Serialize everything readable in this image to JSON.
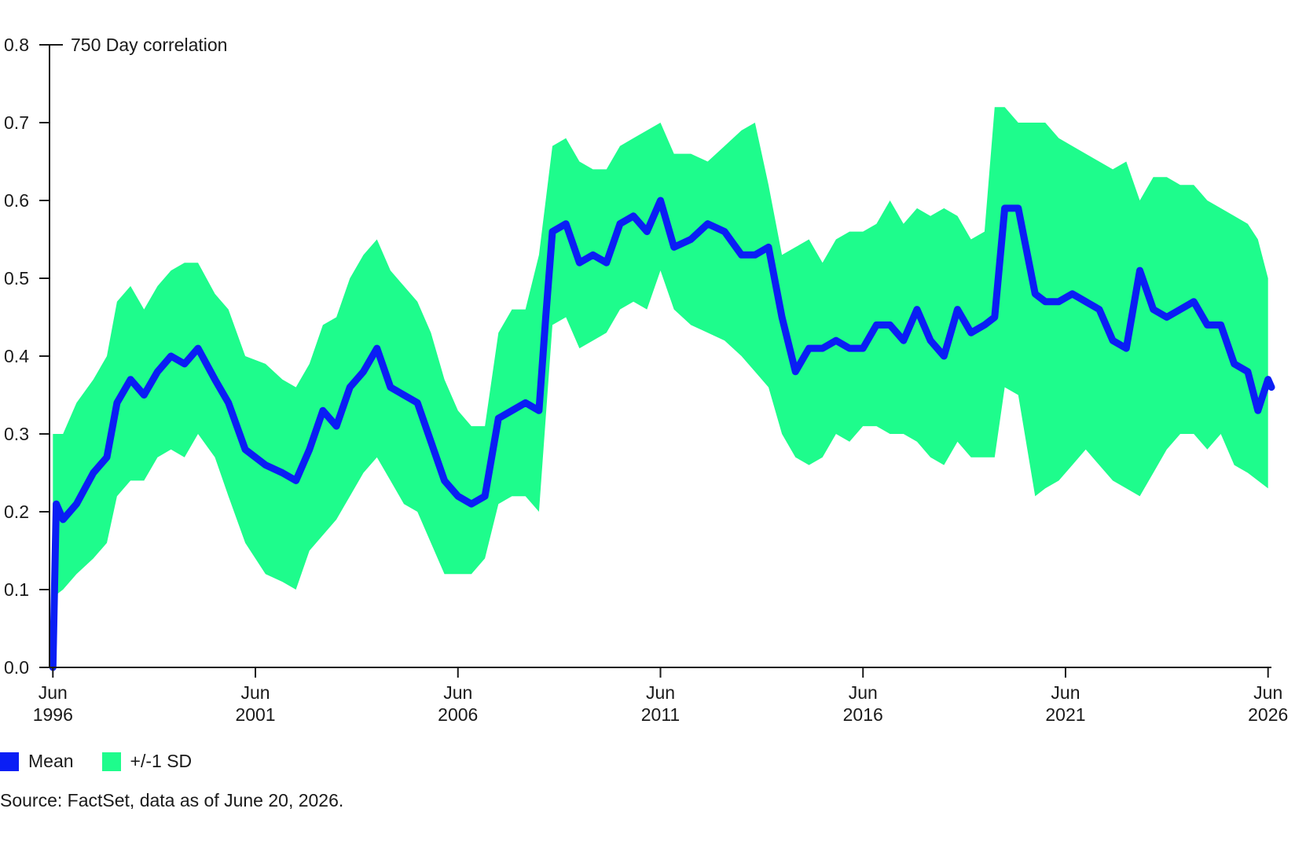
{
  "chart_data": {
    "type": "area",
    "title": "",
    "ylabel": "750 Day correlation",
    "xlabel": "",
    "ylim": [
      0.0,
      0.8
    ],
    "xlim": [
      "1996-05",
      "2026-07"
    ],
    "y_ticks": [
      "0.0",
      "0.1",
      "0.2",
      "0.3",
      "0.4",
      "0.5",
      "0.6",
      "0.7",
      "0.8"
    ],
    "x_ticks": [
      {
        "date": "1996-06",
        "line1": "Jun",
        "line2": "1996"
      },
      {
        "date": "2001-06",
        "line1": "Jun",
        "line2": "2001"
      },
      {
        "date": "2006-06",
        "line1": "Jun",
        "line2": "2006"
      },
      {
        "date": "2011-06",
        "line1": "Jun",
        "line2": "2011"
      },
      {
        "date": "2016-06",
        "line1": "Jun",
        "line2": "2016"
      },
      {
        "date": "2021-06",
        "line1": "Jun",
        "line2": "2021"
      },
      {
        "date": "2026-06",
        "line1": "Jun",
        "line2": "2026"
      }
    ],
    "grid": false,
    "legend": "bottom-left",
    "series": [
      {
        "name": "Mean",
        "color": "#0a1ef5",
        "x": [
          "1996-06",
          "1996-07",
          "1996-09",
          "1997-01",
          "1997-06",
          "1997-10",
          "1998-01",
          "1998-05",
          "1998-09",
          "1999-01",
          "1999-05",
          "1999-09",
          "2000-01",
          "2000-06",
          "2000-10",
          "2001-03",
          "2001-09",
          "2002-02",
          "2002-06",
          "2002-10",
          "2003-02",
          "2003-06",
          "2003-10",
          "2004-02",
          "2004-06",
          "2004-10",
          "2005-02",
          "2005-06",
          "2005-10",
          "2006-02",
          "2006-06",
          "2006-10",
          "2007-02",
          "2007-06",
          "2007-10",
          "2008-02",
          "2008-06",
          "2008-08",
          "2008-10",
          "2009-02",
          "2009-06",
          "2009-10",
          "2010-02",
          "2010-06",
          "2010-10",
          "2011-02",
          "2011-06",
          "2011-10",
          "2012-03",
          "2012-08",
          "2013-01",
          "2013-06",
          "2013-10",
          "2014-02",
          "2014-06",
          "2014-10",
          "2015-02",
          "2015-06",
          "2015-10",
          "2016-02",
          "2016-06",
          "2016-10",
          "2017-02",
          "2017-06",
          "2017-10",
          "2018-02",
          "2018-06",
          "2018-10",
          "2019-02",
          "2019-06",
          "2019-09",
          "2019-12",
          "2020-04",
          "2020-09",
          "2020-12",
          "2021-04",
          "2021-08",
          "2021-12",
          "2022-04",
          "2022-08",
          "2022-12",
          "2023-04",
          "2023-08",
          "2023-12",
          "2024-04",
          "2024-08",
          "2024-12",
          "2025-04",
          "2025-08",
          "2025-12",
          "2026-03",
          "2026-06",
          "2026-07"
        ],
        "values": [
          0.0,
          0.21,
          0.19,
          0.21,
          0.25,
          0.27,
          0.34,
          0.37,
          0.35,
          0.38,
          0.4,
          0.39,
          0.41,
          0.37,
          0.34,
          0.28,
          0.26,
          0.25,
          0.24,
          0.28,
          0.33,
          0.31,
          0.36,
          0.38,
          0.41,
          0.36,
          0.35,
          0.34,
          0.29,
          0.24,
          0.22,
          0.21,
          0.22,
          0.32,
          0.33,
          0.34,
          0.33,
          0.45,
          0.56,
          0.57,
          0.52,
          0.53,
          0.52,
          0.57,
          0.58,
          0.56,
          0.6,
          0.54,
          0.55,
          0.57,
          0.56,
          0.53,
          0.53,
          0.54,
          0.45,
          0.38,
          0.41,
          0.41,
          0.42,
          0.41,
          0.41,
          0.44,
          0.44,
          0.42,
          0.46,
          0.42,
          0.4,
          0.46,
          0.43,
          0.44,
          0.45,
          0.59,
          0.59,
          0.48,
          0.47,
          0.47,
          0.48,
          0.47,
          0.46,
          0.42,
          0.41,
          0.51,
          0.46,
          0.45,
          0.46,
          0.47,
          0.44,
          0.44,
          0.39,
          0.38,
          0.33,
          0.37,
          0.36
        ]
      },
      {
        "name": "+/-1 SD",
        "color": "#1efc8c",
        "x": [
          "1996-06",
          "1996-09",
          "1997-01",
          "1997-06",
          "1997-10",
          "1998-01",
          "1998-05",
          "1998-09",
          "1999-01",
          "1999-05",
          "1999-09",
          "2000-01",
          "2000-06",
          "2000-10",
          "2001-03",
          "2001-09",
          "2002-02",
          "2002-06",
          "2002-10",
          "2003-02",
          "2003-06",
          "2003-10",
          "2004-02",
          "2004-06",
          "2004-10",
          "2005-02",
          "2005-06",
          "2005-10",
          "2006-02",
          "2006-06",
          "2006-10",
          "2007-02",
          "2007-06",
          "2007-10",
          "2008-02",
          "2008-06",
          "2008-10",
          "2009-02",
          "2009-06",
          "2009-10",
          "2010-02",
          "2010-06",
          "2010-10",
          "2011-02",
          "2011-06",
          "2011-10",
          "2012-03",
          "2012-08",
          "2013-01",
          "2013-06",
          "2013-10",
          "2014-02",
          "2014-06",
          "2014-10",
          "2015-02",
          "2015-06",
          "2015-10",
          "2016-02",
          "2016-06",
          "2016-10",
          "2017-02",
          "2017-06",
          "2017-10",
          "2018-02",
          "2018-06",
          "2018-10",
          "2019-02",
          "2019-06",
          "2019-09",
          "2019-12",
          "2020-04",
          "2020-09",
          "2020-12",
          "2021-04",
          "2021-08",
          "2021-12",
          "2022-04",
          "2022-08",
          "2022-12",
          "2023-04",
          "2023-08",
          "2023-12",
          "2024-04",
          "2024-08",
          "2024-12",
          "2025-04",
          "2025-08",
          "2025-12",
          "2026-03",
          "2026-06"
        ],
        "upper": [
          0.3,
          0.3,
          0.34,
          0.37,
          0.4,
          0.47,
          0.49,
          0.46,
          0.49,
          0.51,
          0.52,
          0.52,
          0.48,
          0.46,
          0.4,
          0.39,
          0.37,
          0.36,
          0.39,
          0.44,
          0.45,
          0.5,
          0.53,
          0.55,
          0.51,
          0.49,
          0.47,
          0.43,
          0.37,
          0.33,
          0.31,
          0.31,
          0.43,
          0.46,
          0.46,
          0.53,
          0.67,
          0.68,
          0.65,
          0.64,
          0.64,
          0.67,
          0.68,
          0.69,
          0.7,
          0.66,
          0.66,
          0.65,
          0.67,
          0.69,
          0.7,
          0.62,
          0.53,
          0.54,
          0.55,
          0.52,
          0.55,
          0.56,
          0.56,
          0.57,
          0.6,
          0.57,
          0.59,
          0.58,
          0.59,
          0.58,
          0.55,
          0.56,
          0.72,
          0.72,
          0.7,
          0.7,
          0.7,
          0.68,
          0.67,
          0.66,
          0.65,
          0.64,
          0.65,
          0.6,
          0.63,
          0.63,
          0.62,
          0.62,
          0.6,
          0.59,
          0.58,
          0.57,
          0.55,
          0.5
        ],
        "lower": [
          0.09,
          0.1,
          0.12,
          0.14,
          0.16,
          0.22,
          0.24,
          0.24,
          0.27,
          0.28,
          0.27,
          0.3,
          0.27,
          0.22,
          0.16,
          0.12,
          0.11,
          0.1,
          0.15,
          0.17,
          0.19,
          0.22,
          0.25,
          0.27,
          0.24,
          0.21,
          0.2,
          0.16,
          0.12,
          0.12,
          0.12,
          0.14,
          0.21,
          0.22,
          0.22,
          0.2,
          0.44,
          0.45,
          0.41,
          0.42,
          0.43,
          0.46,
          0.47,
          0.46,
          0.51,
          0.46,
          0.44,
          0.43,
          0.42,
          0.4,
          0.38,
          0.36,
          0.3,
          0.27,
          0.26,
          0.27,
          0.3,
          0.29,
          0.31,
          0.31,
          0.3,
          0.3,
          0.29,
          0.27,
          0.26,
          0.29,
          0.27,
          0.27,
          0.27,
          0.36,
          0.35,
          0.22,
          0.23,
          0.24,
          0.26,
          0.28,
          0.26,
          0.24,
          0.23,
          0.22,
          0.25,
          0.28,
          0.3,
          0.3,
          0.28,
          0.3,
          0.26,
          0.25,
          0.24,
          0.23
        ]
      }
    ]
  },
  "legend": {
    "mean_label": "Mean",
    "sd_label": "+/-1 SD"
  },
  "source_note": "Source: FactSet, data as of June 20, 2026."
}
